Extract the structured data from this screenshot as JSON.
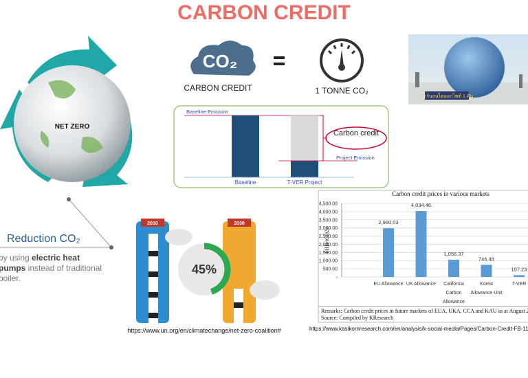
{
  "header": {
    "title": "CARBON CREDIT"
  },
  "equation": {
    "co2_icon": "CO₂",
    "co2_label": "CARBON CREDIT",
    "gauge_label": "1 TONNE CO₂"
  },
  "photo": {
    "caption": "คาร์บอนไดออกไซด์ 1 ตัน"
  },
  "diagram": {
    "baseline_emission": "Baseline Emission",
    "carbon_credit": "Carbon credit",
    "project_emission": "Project Emission",
    "baseline": "Baseline",
    "project": "T-VER Project"
  },
  "globe": {
    "label": "NET ZERO"
  },
  "reduction": {
    "title": "Reduction CO₂",
    "line1": [
      "by using ",
      "electric heat"
    ],
    "line2": [
      "pumps",
      " instead of traditional"
    ],
    "line3": "boiler."
  },
  "thermometer": {
    "left_year": "2010",
    "right_year": "2030",
    "percent": "45%",
    "source": "https://www.un.org/en/climatechange/net-zero-coalition#"
  },
  "chart_data": {
    "type": "bar",
    "title": "Carbon credit prices in various markets",
    "y_label": "THB/tCO2e",
    "categories": [
      "EU Allowance",
      "UK Allowance",
      "California Carbon Allowance",
      "Korea Allowance Unit",
      "T-VER"
    ],
    "values": [
      2980.03,
      4034.46,
      1056.37,
      746.48,
      107.23
    ],
    "value_labels": [
      "2,980.03",
      "4,034.46",
      "1,056.37",
      "746.48",
      "107.23"
    ],
    "color": "#5b9bd5",
    "ylim": [
      0,
      4500
    ],
    "yticks": [
      {
        "value": 0,
        "label": "-"
      },
      {
        "value": 500,
        "label": "500.00"
      },
      {
        "value": 1000,
        "label": "1,000.00"
      },
      {
        "value": 1500,
        "label": "1,500.00"
      },
      {
        "value": 2000,
        "label": "2,000.00"
      },
      {
        "value": 2500,
        "label": "2,500.00"
      },
      {
        "value": 3000,
        "label": "3,000.00"
      },
      {
        "value": 3500,
        "label": "3,500.00"
      },
      {
        "value": 4000,
        "label": "4,000.00"
      },
      {
        "value": 4500,
        "label": "4,500.00"
      }
    ],
    "grid": true,
    "remarks": "Remarks: Carbon credit prices in future markets of EUA, UKA, CCA and KAU as at August 2",
    "source": "Source: Compiled by KResearch",
    "url": "https://www.kasikornresearch.com/en/analysis/k-social-media/Pages/Carbon-Credit-FB-11"
  }
}
